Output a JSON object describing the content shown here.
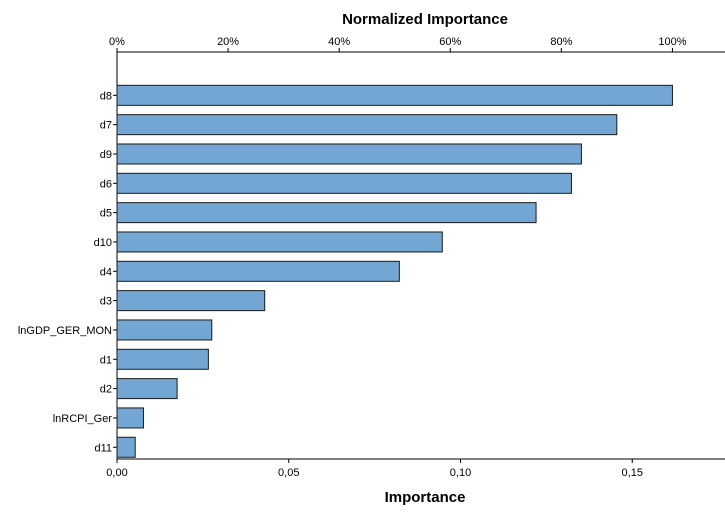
{
  "chart_data": {
    "type": "bar",
    "orientation": "horizontal",
    "categories": [
      "d8",
      "d7",
      "d9",
      "d6",
      "d5",
      "d10",
      "d4",
      "d3",
      "lnGDP_GER_MON",
      "d1",
      "d2",
      "lnRCPI_Ger",
      "d11"
    ],
    "values": [
      0.1617,
      0.1455,
      0.1352,
      0.1323,
      0.122,
      0.0947,
      0.0822,
      0.043,
      0.0276,
      0.0266,
      0.0175,
      0.0077,
      0.0053
    ],
    "series": [
      {
        "values": [
          0.1617,
          0.1455,
          0.1352,
          0.1323,
          0.122,
          0.0947,
          0.0822,
          0.043,
          0.0276,
          0.0266,
          0.0175,
          0.0077,
          0.0053
        ]
      }
    ],
    "normalized_percent": [
      100,
      90.0,
      83.6,
      81.8,
      75.5,
      58.6,
      50.8,
      26.6,
      17.1,
      16.5,
      10.8,
      4.8,
      3.3
    ],
    "title": "Normalized Importance",
    "xlabel": "Importance",
    "top_axis_label": "Normalized Importance",
    "top_ticks": [
      "0%",
      "20%",
      "40%",
      "60%",
      "80%",
      "100%"
    ],
    "top_tick_values": [
      0,
      20,
      40,
      60,
      80,
      100
    ],
    "bottom_ticks": [
      "0,00",
      "0,05",
      "0,10",
      "0,15"
    ],
    "bottom_tick_values": [
      0.0,
      0.05,
      0.1,
      0.15
    ],
    "xlim": [
      0,
      0.177
    ],
    "grid": false,
    "colors": {
      "bar": "#74a6d4",
      "bar_stroke": "#1a1a1a"
    }
  }
}
